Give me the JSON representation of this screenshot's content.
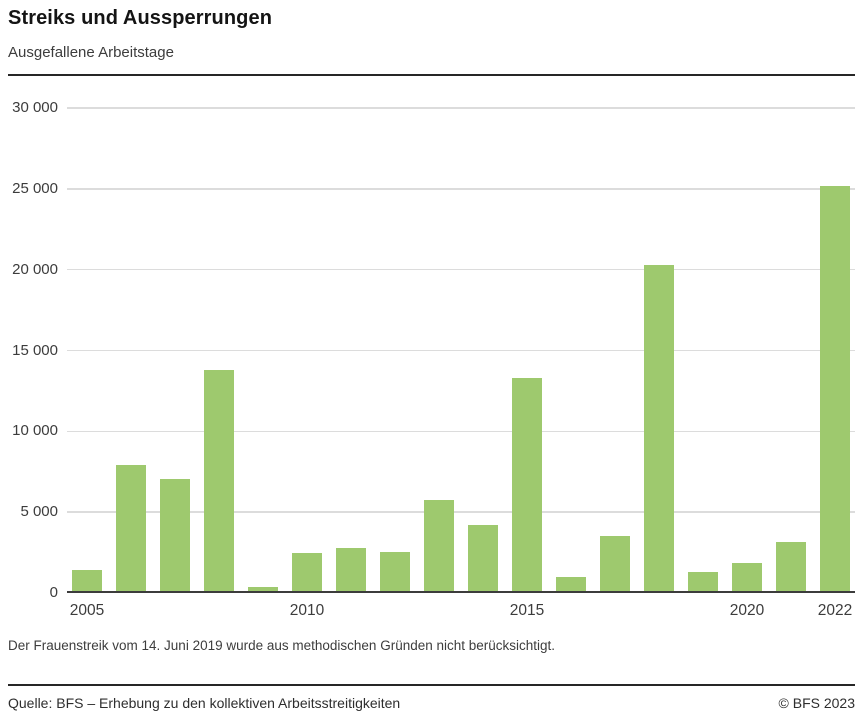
{
  "header": {
    "title": "Streiks und Aussperrungen",
    "subtitle": "Ausgefallene Arbeitstage"
  },
  "chart_data": {
    "type": "bar",
    "title": "Streiks und Aussperrungen",
    "subtitle": "Ausgefallene Arbeitstage",
    "categories": [
      "2005",
      "2006",
      "2007",
      "2008",
      "2009",
      "2010",
      "2011",
      "2012",
      "2013",
      "2014",
      "2015",
      "2016",
      "2017",
      "2018",
      "2019",
      "2020",
      "2021",
      "2022"
    ],
    "values": [
      1400,
      7900,
      7050,
      13800,
      400,
      2450,
      2800,
      2550,
      5750,
      4200,
      13300,
      1000,
      3500,
      20300,
      1300,
      1850,
      3150,
      25200
    ],
    "xlabel": "",
    "ylabel": "",
    "ylim": [
      0,
      30000
    ],
    "yticks": [
      {
        "value": 0,
        "label": "0"
      },
      {
        "value": 5000,
        "label": "5 000"
      },
      {
        "value": 10000,
        "label": "10 000"
      },
      {
        "value": 15000,
        "label": "15 000"
      },
      {
        "value": 20000,
        "label": "20 000"
      },
      {
        "value": 25000,
        "label": "25 000"
      },
      {
        "value": 30000,
        "label": "30 000"
      }
    ],
    "xticks_shown": [
      "2005",
      "2010",
      "2015",
      "2020",
      "2022"
    ],
    "grid": "horizontal",
    "legend": "none",
    "bar_color": "#9ec96e"
  },
  "footnote": "Der Frauenstreik vom 14. Juni 2019 wurde aus methodischen Gründen nicht berücksichtigt.",
  "footer": {
    "source": "Quelle: BFS – Erhebung zu den kollektiven Arbeitsstreitigkeiten",
    "copyright": "© BFS 2023"
  }
}
